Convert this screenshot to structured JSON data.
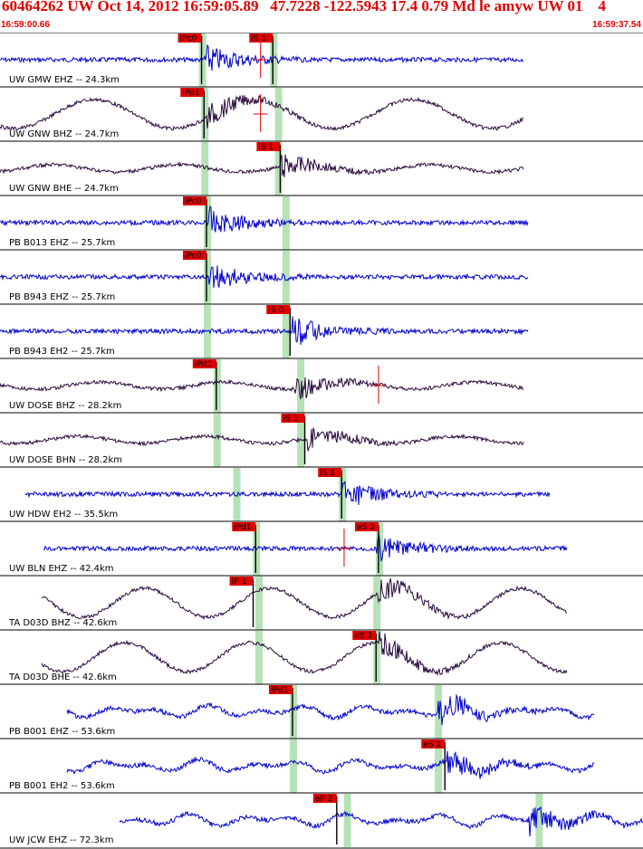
{
  "header": {
    "title": "60464262 UW Oct 14, 2012 16:59:05.89   47.7228 -122.5943 17.4 0.79 Md le amyw UW 01    4",
    "start_time": "16:59:00.66",
    "end_time": "16:59:37.54"
  },
  "colors": {
    "header_text": "#e00000",
    "pick_flag": "#e00000",
    "highlight": "#b7e2b7",
    "trace_blue": "#0000cc",
    "trace_dark": "#2a0a3c",
    "timing_line": "#000000"
  },
  "chart_data": {
    "type": "line",
    "x_axis": {
      "unit": "time",
      "start": "16:59:00.66",
      "end": "16:59:37.54"
    },
    "series": [
      {
        "name": "UW GMW EHZ -- 24.3km",
        "color": "blue",
        "picks": [
          {
            "label": "iPc0",
            "t": 8.2
          },
          {
            "label": "iS 1",
            "t": 11.1
          }
        ],
        "bands": [
          8.2,
          11.1
        ]
      },
      {
        "name": "UW GNW BHZ -- 24.7km",
        "color": "dark",
        "picks": [
          {
            "label": "iPd1",
            "t": 8.3
          }
        ],
        "bands": [
          8.3,
          11.3
        ]
      },
      {
        "name": "UW GNW BHE -- 24.7km",
        "color": "dark",
        "picks": [
          {
            "label": "iS 1",
            "t": 11.4
          }
        ],
        "bands": [
          8.3,
          11.3
        ]
      },
      {
        "name": "PB B013 EHZ -- 25.7km",
        "color": "blue",
        "picks": [
          {
            "label": "iPc0",
            "t": 8.4
          }
        ],
        "bands": [
          8.4,
          11.6
        ]
      },
      {
        "name": "PB B943 EHZ -- 25.7km",
        "color": "blue",
        "picks": [
          {
            "label": "iPc0",
            "t": 8.4
          }
        ],
        "bands": [
          8.4,
          11.6
        ]
      },
      {
        "name": "PB B943 EH2 -- 25.7km",
        "color": "blue",
        "picks": [
          {
            "label": "iS 0",
            "t": 11.8
          }
        ],
        "bands": [
          8.4,
          11.6
        ]
      },
      {
        "name": "UW DOSE BHZ -- 28.2km",
        "color": "dark",
        "picks": [
          {
            "label": "iPd1",
            "t": 8.8
          }
        ],
        "bands": [
          8.8,
          12.2
        ]
      },
      {
        "name": "UW DOSE BHN -- 28.2km",
        "color": "dark",
        "picks": [
          {
            "label": "iS 1",
            "t": 12.4
          }
        ],
        "bands": [
          8.8,
          12.2
        ]
      },
      {
        "name": "UW HDW EH2 -- 35.5km",
        "color": "blue",
        "picks": [
          {
            "label": "iS 1",
            "t": 13.9
          }
        ],
        "bands": [
          9.6,
          13.9
        ]
      },
      {
        "name": "UW BLN EHZ -- 42.4km",
        "color": "blue",
        "picks": [
          {
            "label": "iPd1",
            "t": 10.4
          },
          {
            "label": "eS 2",
            "t": 15.4
          }
        ],
        "bands": [
          10.4,
          15.4
        ]
      },
      {
        "name": "TA D03D BHZ -- 42.6km",
        "color": "dark",
        "picks": [
          {
            "label": "iP 1",
            "t": 10.3
          }
        ],
        "bands": [
          10.5,
          15.3
        ]
      },
      {
        "name": "TA D03D BHE -- 42.6km",
        "color": "dark",
        "picks": [
          {
            "label": "eS 2",
            "t": 15.3
          }
        ],
        "bands": [
          10.5,
          15.3
        ]
      },
      {
        "name": "PB B001 EHZ -- 53.6km",
        "color": "blue",
        "picks": [
          {
            "label": "iPd1",
            "t": 11.9
          }
        ],
        "bands": [
          11.9,
          17.8
        ]
      },
      {
        "name": "PB B001 EH2 -- 53.6km",
        "color": "blue",
        "picks": [
          {
            "label": "eS 2",
            "t": 18.1
          }
        ],
        "bands": [
          11.9,
          17.8
        ]
      },
      {
        "name": "UW JCW EHZ -- 72.3km",
        "color": "blue",
        "picks": [
          {
            "label": "eP 2",
            "t": 13.7
          }
        ],
        "bands": [
          14.1,
          21.9
        ]
      }
    ]
  }
}
